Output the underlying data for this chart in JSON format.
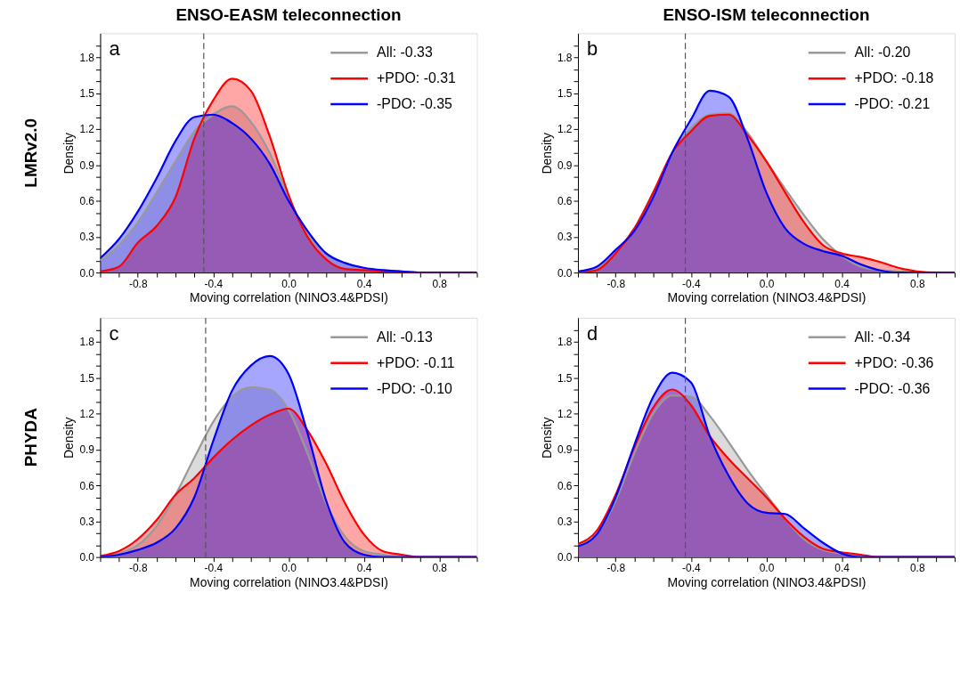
{
  "chart_data": [
    {
      "type": "area",
      "title": "ENSO-EASM teleconnection",
      "xlabel": "Moving correlation (NINO3.4&PDSI)",
      "ylabel": "Density",
      "annotations": [
        "a",
        "LMRv2.0"
      ],
      "x": [
        -1.0,
        -0.9,
        -0.8,
        -0.7,
        -0.6,
        -0.5,
        -0.4,
        -0.3,
        -0.2,
        -0.1,
        0.0,
        0.1,
        0.2,
        0.3,
        0.4,
        0.5,
        0.6,
        0.7,
        0.8,
        0.9,
        1.0
      ],
      "series": [
        {
          "name": "All: -0.33",
          "color": "#999999",
          "values": [
            0.1,
            0.23,
            0.42,
            0.67,
            0.93,
            1.18,
            1.32,
            1.39,
            1.26,
            1.0,
            0.63,
            0.32,
            0.16,
            0.08,
            0.03,
            0.02,
            0.01,
            0,
            0,
            0,
            0
          ]
        },
        {
          "name": "+PDO: -0.31",
          "color": "#ff0000",
          "values": [
            0.01,
            0.05,
            0.25,
            0.39,
            0.63,
            1.12,
            1.44,
            1.62,
            1.52,
            1.14,
            0.65,
            0.3,
            0.11,
            0.03,
            0.02,
            0.01,
            0,
            0,
            0,
            0,
            0
          ]
        },
        {
          "name": "-PDO: -0.35",
          "color": "#0000ff",
          "values": [
            0.12,
            0.28,
            0.51,
            0.79,
            1.1,
            1.3,
            1.32,
            1.25,
            1.12,
            0.91,
            0.6,
            0.35,
            0.16,
            0.08,
            0.04,
            0.02,
            0.01,
            0,
            0,
            0,
            0
          ]
        }
      ],
      "ref_lines": [
        {
          "axis": "x",
          "value": -0.45,
          "color": "#555555",
          "line_style": "dashed"
        }
      ],
      "xlim": [
        -1.0,
        1.0
      ],
      "ylim": [
        0,
        2.0
      ],
      "xticks": [
        {
          "value": -1.0,
          "label": null
        },
        {
          "value": -0.9,
          "label": null
        },
        -0.8,
        {
          "value": -0.7,
          "label": null
        },
        {
          "value": -0.6,
          "label": null
        },
        {
          "value": -0.5,
          "label": null
        },
        -0.4,
        {
          "value": -0.3,
          "label": null
        },
        {
          "value": -0.2,
          "label": null
        },
        {
          "value": -0.1,
          "label": null
        },
        {
          "value": 0,
          "label": "0.0"
        },
        {
          "value": 0.1,
          "label": null
        },
        {
          "value": 0.2,
          "label": null
        },
        {
          "value": 0.3,
          "label": null
        },
        0.4,
        {
          "value": 0.5,
          "label": null
        },
        {
          "value": 0.6,
          "label": null
        },
        {
          "value": 0.7,
          "label": null
        },
        0.8,
        {
          "value": 0.9,
          "label": null
        },
        {
          "value": 1.0,
          "label": null
        }
      ],
      "yticks": [
        {
          "value": 0,
          "label": "0.0"
        },
        {
          "value": 0.1,
          "label": null
        },
        {
          "value": 0.2,
          "label": null
        },
        0.3,
        {
          "value": 0.4,
          "label": null
        },
        {
          "value": 0.5,
          "label": null
        },
        0.6,
        {
          "value": 0.7,
          "label": null
        },
        {
          "value": 0.8,
          "label": null
        },
        0.9,
        {
          "value": 1.0,
          "label": null
        },
        {
          "value": 1.1,
          "label": null
        },
        1.2,
        {
          "value": 1.3,
          "label": null
        },
        {
          "value": 1.4,
          "label": null
        },
        1.5,
        {
          "value": 1.6,
          "label": null
        },
        {
          "value": 1.7,
          "label": null
        },
        1.8,
        {
          "value": 1.9,
          "label": null
        }
      ],
      "legend": "top right",
      "grid": false
    },
    {
      "type": "area",
      "title": "ENSO-ISM teleconnection",
      "xlabel": "Moving correlation (NINO3.4&PDSI)",
      "ylabel": "Density",
      "annotations": [
        "b"
      ],
      "x": [
        -1.0,
        -0.9,
        -0.8,
        -0.7,
        -0.6,
        -0.5,
        -0.4,
        -0.3,
        -0.2,
        -0.1,
        0.0,
        0.1,
        0.2,
        0.3,
        0.4,
        0.5,
        0.6,
        0.7,
        0.8,
        0.9,
        1.0
      ],
      "series": [
        {
          "name": "All: -0.20",
          "color": "#999999",
          "values": [
            0,
            0.03,
            0.17,
            0.37,
            0.67,
            0.99,
            1.21,
            1.32,
            1.33,
            1.17,
            0.93,
            0.7,
            0.48,
            0.28,
            0.14,
            0.05,
            0.02,
            0.01,
            0,
            0,
            0
          ]
        },
        {
          "name": "+PDO: -0.18",
          "color": "#ff0000",
          "values": [
            0,
            0.02,
            0.16,
            0.37,
            0.67,
            1.0,
            1.18,
            1.31,
            1.32,
            1.15,
            0.93,
            0.67,
            0.42,
            0.23,
            0.16,
            0.13,
            0.09,
            0.04,
            0.01,
            0,
            0
          ]
        },
        {
          "name": "-PDO: -0.21",
          "color": "#0000ff",
          "values": [
            0.01,
            0.05,
            0.19,
            0.35,
            0.63,
            1.0,
            1.28,
            1.52,
            1.47,
            1.12,
            0.67,
            0.37,
            0.24,
            0.18,
            0.14,
            0.07,
            0.02,
            0,
            0,
            0,
            0
          ]
        }
      ],
      "ref_lines": [
        {
          "axis": "x",
          "value": -0.43,
          "color": "#555555",
          "line_style": "dashed"
        }
      ],
      "xlim": [
        -1.0,
        1.0
      ],
      "ylim": [
        0,
        2.0
      ],
      "xticks": [
        {
          "value": -1.0,
          "label": null
        },
        {
          "value": -0.9,
          "label": null
        },
        -0.8,
        {
          "value": -0.7,
          "label": null
        },
        {
          "value": -0.6,
          "label": null
        },
        {
          "value": -0.5,
          "label": null
        },
        -0.4,
        {
          "value": -0.3,
          "label": null
        },
        {
          "value": -0.2,
          "label": null
        },
        {
          "value": -0.1,
          "label": null
        },
        {
          "value": 0,
          "label": "0.0"
        },
        {
          "value": 0.1,
          "label": null
        },
        {
          "value": 0.2,
          "label": null
        },
        {
          "value": 0.3,
          "label": null
        },
        0.4,
        {
          "value": 0.5,
          "label": null
        },
        {
          "value": 0.6,
          "label": null
        },
        {
          "value": 0.7,
          "label": null
        },
        0.8,
        {
          "value": 0.9,
          "label": null
        },
        {
          "value": 1.0,
          "label": null
        }
      ],
      "yticks": [
        {
          "value": 0,
          "label": "0.0"
        },
        {
          "value": 0.1,
          "label": null
        },
        {
          "value": 0.2,
          "label": null
        },
        0.3,
        {
          "value": 0.4,
          "label": null
        },
        {
          "value": 0.5,
          "label": null
        },
        0.6,
        {
          "value": 0.7,
          "label": null
        },
        {
          "value": 0.8,
          "label": null
        },
        0.9,
        {
          "value": 1.0,
          "label": null
        },
        {
          "value": 1.1,
          "label": null
        },
        1.2,
        {
          "value": 1.3,
          "label": null
        },
        {
          "value": 1.4,
          "label": null
        },
        1.5,
        {
          "value": 1.6,
          "label": null
        },
        {
          "value": 1.7,
          "label": null
        },
        1.8,
        {
          "value": 1.9,
          "label": null
        }
      ],
      "legend": "top right",
      "grid": false
    },
    {
      "type": "area",
      "xlabel": "Moving correlation (NINO3.4&PDSI)",
      "ylabel": "Density",
      "annotations": [
        "c",
        "PHYDA"
      ],
      "x": [
        -1.0,
        -0.9,
        -0.8,
        -0.7,
        -0.6,
        -0.5,
        -0.4,
        -0.3,
        -0.2,
        -0.1,
        0.0,
        0.1,
        0.2,
        0.3,
        0.4,
        0.5,
        0.6,
        0.7,
        0.8,
        0.9,
        1.0
      ],
      "series": [
        {
          "name": "All: -0.13",
          "color": "#999999",
          "values": [
            0,
            0.03,
            0.1,
            0.26,
            0.52,
            0.83,
            1.13,
            1.34,
            1.42,
            1.4,
            1.23,
            0.87,
            0.45,
            0.17,
            0.05,
            0.02,
            0,
            0,
            0,
            0,
            0
          ]
        },
        {
          "name": "+PDO: -0.11",
          "color": "#ff0000",
          "values": [
            0.01,
            0.05,
            0.15,
            0.31,
            0.52,
            0.66,
            0.83,
            0.98,
            1.1,
            1.19,
            1.24,
            1.06,
            0.78,
            0.45,
            0.19,
            0.05,
            0.02,
            0,
            0,
            0,
            0
          ]
        },
        {
          "name": "-PDO: -0.10",
          "color": "#0000ff",
          "values": [
            0,
            0.02,
            0.06,
            0.12,
            0.24,
            0.5,
            0.97,
            1.39,
            1.6,
            1.68,
            1.53,
            1.04,
            0.47,
            0.12,
            0.02,
            0,
            0,
            0,
            0,
            0,
            0
          ]
        }
      ],
      "ref_lines": [
        {
          "axis": "x",
          "value": -0.44,
          "color": "#555555",
          "line_style": "dashed"
        }
      ],
      "xlim": [
        -1.0,
        1.0
      ],
      "ylim": [
        0,
        2.0
      ],
      "xticks": [
        {
          "value": -1.0,
          "label": null
        },
        {
          "value": -0.9,
          "label": null
        },
        -0.8,
        {
          "value": -0.7,
          "label": null
        },
        {
          "value": -0.6,
          "label": null
        },
        {
          "value": -0.5,
          "label": null
        },
        -0.4,
        {
          "value": -0.3,
          "label": null
        },
        {
          "value": -0.2,
          "label": null
        },
        {
          "value": -0.1,
          "label": null
        },
        {
          "value": 0,
          "label": "0.0"
        },
        {
          "value": 0.1,
          "label": null
        },
        {
          "value": 0.2,
          "label": null
        },
        {
          "value": 0.3,
          "label": null
        },
        0.4,
        {
          "value": 0.5,
          "label": null
        },
        {
          "value": 0.6,
          "label": null
        },
        {
          "value": 0.7,
          "label": null
        },
        0.8,
        {
          "value": 0.9,
          "label": null
        },
        {
          "value": 1.0,
          "label": null
        }
      ],
      "yticks": [
        {
          "value": 0,
          "label": "0.0"
        },
        {
          "value": 0.1,
          "label": null
        },
        {
          "value": 0.2,
          "label": null
        },
        0.3,
        {
          "value": 0.4,
          "label": null
        },
        {
          "value": 0.5,
          "label": null
        },
        0.6,
        {
          "value": 0.7,
          "label": null
        },
        {
          "value": 0.8,
          "label": null
        },
        0.9,
        {
          "value": 1.0,
          "label": null
        },
        {
          "value": 1.1,
          "label": null
        },
        1.2,
        {
          "value": 1.3,
          "label": null
        },
        {
          "value": 1.4,
          "label": null
        },
        1.5,
        {
          "value": 1.6,
          "label": null
        },
        {
          "value": 1.7,
          "label": null
        },
        1.8,
        {
          "value": 1.9,
          "label": null
        }
      ],
      "legend": "top right",
      "grid": false
    },
    {
      "type": "area",
      "xlabel": "Moving correlation (NINO3.4&PDSI)",
      "ylabel": "Density",
      "annotations": [
        "d"
      ],
      "x": [
        -1.0,
        -0.9,
        -0.8,
        -0.7,
        -0.6,
        -0.5,
        -0.4,
        -0.3,
        -0.2,
        -0.1,
        0.0,
        0.1,
        0.2,
        0.3,
        0.4,
        0.5,
        0.6,
        0.7,
        0.8,
        0.9,
        1.0
      ],
      "series": [
        {
          "name": "All: -0.34",
          "color": "#999999",
          "values": [
            0.1,
            0.19,
            0.47,
            0.87,
            1.2,
            1.35,
            1.34,
            1.18,
            0.96,
            0.73,
            0.52,
            0.32,
            0.15,
            0.06,
            0.03,
            0.01,
            0,
            0,
            0,
            0,
            0
          ]
        },
        {
          "name": "+PDO: -0.36",
          "color": "#ff0000",
          "values": [
            0.11,
            0.22,
            0.52,
            0.92,
            1.25,
            1.4,
            1.27,
            1.01,
            0.82,
            0.66,
            0.5,
            0.32,
            0.17,
            0.07,
            0.04,
            0.02,
            0,
            0,
            0,
            0,
            0
          ]
        },
        {
          "name": "-PDO: -0.36",
          "color": "#0000ff",
          "values": [
            0.09,
            0.19,
            0.5,
            0.94,
            1.34,
            1.54,
            1.46,
            1.01,
            0.68,
            0.45,
            0.37,
            0.36,
            0.24,
            0.12,
            0.03,
            0,
            0,
            0,
            0,
            0,
            0
          ]
        }
      ],
      "ref_lines": [
        {
          "axis": "x",
          "value": -0.43,
          "color": "#555555",
          "line_style": "dashed"
        }
      ],
      "xlim": [
        -1.0,
        1.0
      ],
      "ylim": [
        0,
        2.0
      ],
      "xticks": [
        {
          "value": -1.0,
          "label": null
        },
        {
          "value": -0.9,
          "label": null
        },
        -0.8,
        {
          "value": -0.7,
          "label": null
        },
        {
          "value": -0.6,
          "label": null
        },
        {
          "value": -0.5,
          "label": null
        },
        -0.4,
        {
          "value": -0.3,
          "label": null
        },
        {
          "value": -0.2,
          "label": null
        },
        {
          "value": -0.1,
          "label": null
        },
        {
          "value": 0,
          "label": "0.0"
        },
        {
          "value": 0.1,
          "label": null
        },
        {
          "value": 0.2,
          "label": null
        },
        {
          "value": 0.3,
          "label": null
        },
        0.4,
        {
          "value": 0.5,
          "label": null
        },
        {
          "value": 0.6,
          "label": null
        },
        {
          "value": 0.7,
          "label": null
        },
        0.8,
        {
          "value": 0.9,
          "label": null
        },
        {
          "value": 1.0,
          "label": null
        }
      ],
      "yticks": [
        {
          "value": 0,
          "label": "0.0"
        },
        {
          "value": 0.1,
          "label": null
        },
        {
          "value": 0.2,
          "label": null
        },
        0.3,
        {
          "value": 0.4,
          "label": null
        },
        {
          "value": 0.5,
          "label": null
        },
        0.6,
        {
          "value": 0.7,
          "label": null
        },
        {
          "value": 0.8,
          "label": null
        },
        0.9,
        {
          "value": 1.0,
          "label": null
        },
        {
          "value": 1.1,
          "label": null
        },
        1.2,
        {
          "value": 1.3,
          "label": null
        },
        {
          "value": 1.4,
          "label": null
        },
        1.5,
        {
          "value": 1.6,
          "label": null
        },
        {
          "value": 1.7,
          "label": null
        },
        1.8,
        {
          "value": 1.9,
          "label": null
        }
      ],
      "legend": "top right",
      "grid": false
    }
  ]
}
